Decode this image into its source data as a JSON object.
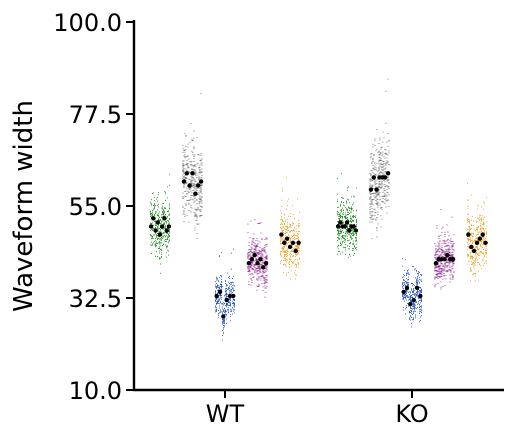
{
  "chart_data": {
    "type": "scatter",
    "ylabel": "Waveform width",
    "xlabel": "",
    "ylim": [
      10,
      100
    ],
    "yticks": [
      "10.0",
      "32.5",
      "55.0",
      "77.5",
      "100.0"
    ],
    "categories": [
      "WT",
      "KO"
    ],
    "grid": false,
    "legend": "none",
    "series": [
      {
        "color": "#1a8a1a",
        "center": 50,
        "spread": 7.5,
        "medians": {
          "WT": [
            50,
            52,
            49,
            51,
            48,
            50,
            52,
            49,
            50
          ],
          "KO": [
            50,
            51,
            50,
            50,
            51,
            49,
            50,
            50,
            49
          ]
        }
      },
      {
        "color": "#666666",
        "center": 62,
        "spread": 11,
        "medians": {
          "WT": [
            61,
            63,
            60,
            63,
            58,
            60,
            61
          ],
          "KO": [
            59,
            62,
            59,
            62,
            62,
            62,
            63
          ]
        }
      },
      {
        "color": "#2050c0",
        "center": 32,
        "spread": 5.5,
        "medians": {
          "WT": [
            33,
            34,
            28,
            32,
            33,
            33
          ],
          "KO": [
            34,
            35,
            31,
            32,
            35,
            33
          ]
        }
      },
      {
        "color": "#8a1a8a",
        "center": 42,
        "spread": 6.5,
        "medians": {
          "WT": [
            41,
            42,
            43,
            41,
            42,
            40,
            41
          ],
          "KO": [
            41,
            42,
            42,
            42,
            43,
            42,
            42
          ]
        }
      },
      {
        "color": "#f0a020",
        "center": 45,
        "spread": 8,
        "medians": {
          "WT": [
            48,
            46,
            47,
            45,
            46,
            44,
            46
          ],
          "KO": [
            48,
            45,
            44,
            46,
            47,
            48,
            46
          ]
        }
      }
    ]
  }
}
